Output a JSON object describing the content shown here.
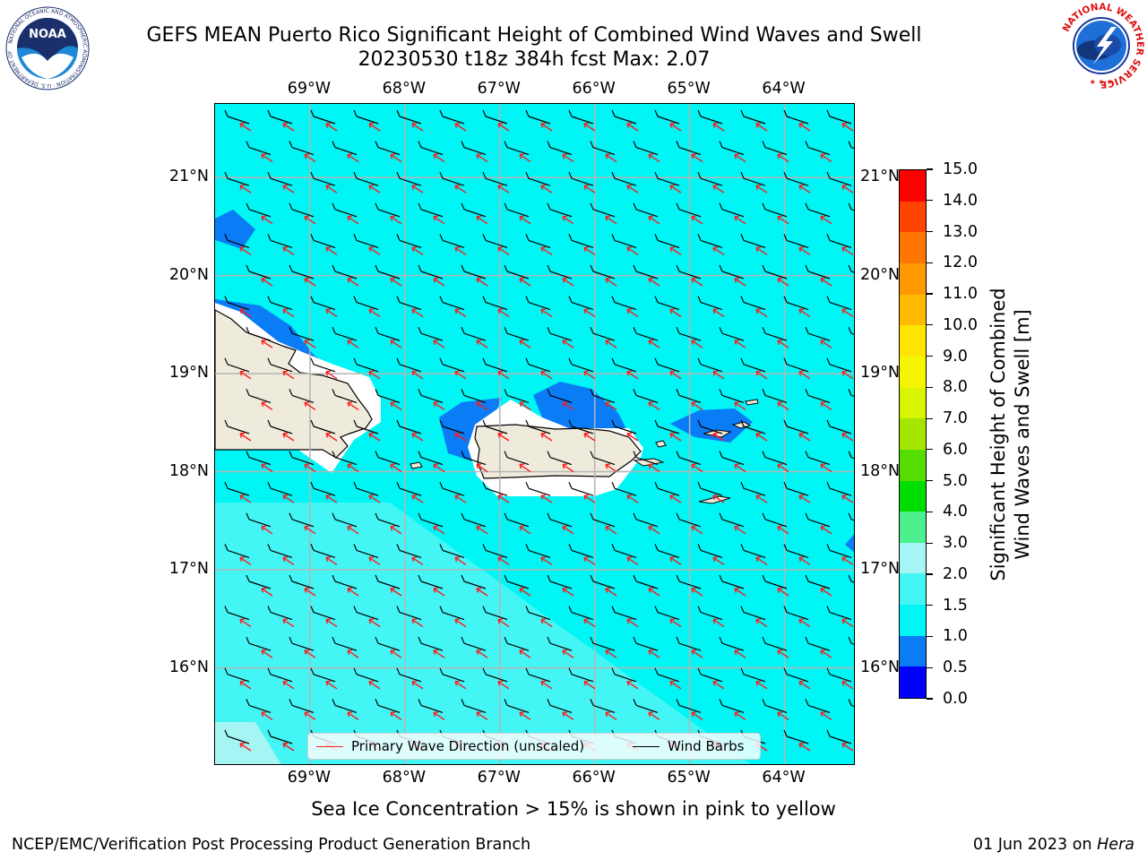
{
  "title": {
    "line1": "GEFS MEAN Puerto Rico Significant Height of Combined Wind Waves and Swell",
    "line2": "20230530 t18z 384h fcst   Max: 2.07"
  },
  "logos": {
    "left": "NOAA",
    "left_ring_text": "NATIONAL OCEANIC AND ATMOSPHERIC ADMINISTRATION · U.S. DEPARTMENT OF COMMERCE",
    "right_ring_text": "NATIONAL WEATHER SERVICE"
  },
  "axes": {
    "lon_ticks": [
      "69°W",
      "68°W",
      "67°W",
      "66°W",
      "65°W",
      "64°W"
    ],
    "lat_ticks": [
      "21°N",
      "20°N",
      "19°N",
      "18°N",
      "17°N",
      "16°N"
    ],
    "lon_values": [
      -69,
      -68,
      -67,
      -66,
      -65,
      -64
    ],
    "lat_values": [
      21,
      20,
      19,
      18,
      17,
      16
    ],
    "lon_range": [
      -70.0,
      -63.25
    ],
    "lat_range": [
      15.0,
      21.75
    ]
  },
  "colorbar": {
    "title_line1": "Significant Height of Combined",
    "title_line2": "Wind Waves and Swell [m]",
    "tick_labels": [
      "0.0",
      "0.5",
      "1.0",
      "1.5",
      "2.0",
      "3.0",
      "4.0",
      "5.0",
      "6.0",
      "7.0",
      "8.0",
      "9.0",
      "10.0",
      "11.0",
      "12.0",
      "13.0",
      "14.0",
      "15.0"
    ],
    "colors": [
      "#0000ff",
      "#0a7cf6",
      "#00f5f5",
      "#44f5f5",
      "#a5f5f5",
      "#4cf08c",
      "#00dd00",
      "#55dd00",
      "#a5e600",
      "#d7f500",
      "#f5f500",
      "#ffe600",
      "#ffbb00",
      "#ff9900",
      "#ff7700",
      "#ff4400",
      "#ff0000"
    ]
  },
  "map": {
    "colors": {
      "ocean_1_15": "#00f5f5",
      "ocean_15_2": "#44f5f5",
      "ocean_2_3": "#a5f5f5",
      "ocean_05_1": "#0a7cf6",
      "land": "#efebdc",
      "wave_arrow": "#ff1a1a",
      "wind_barb": "#000000",
      "grid": "#b5b5b5"
    },
    "max_value": 2.07,
    "wave_direction_from": "southeast",
    "wind_barbs_from": "east"
  },
  "legend": {
    "wave_label": "Primary Wave Direction (unscaled)",
    "wind_label": "Wind Barbs"
  },
  "notes": {
    "ice": "Sea Ice Concentration > 15% is shown in pink to yellow"
  },
  "footer": {
    "left": "NCEP/EMC/Verification Post Processing Product Generation Branch",
    "right_date": "01 Jun 2023 on",
    "right_host": "Hera"
  }
}
